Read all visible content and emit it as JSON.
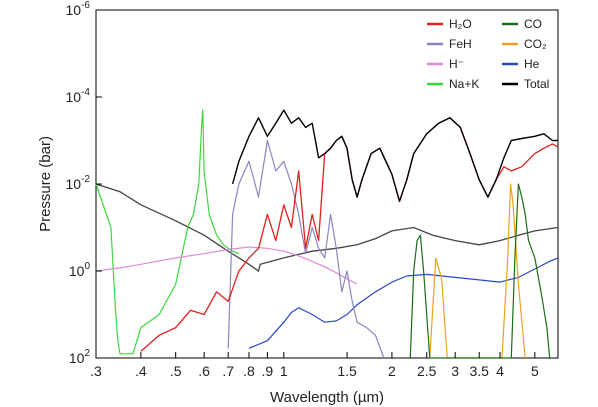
{
  "chart_data": {
    "type": "line",
    "xlabel": "Wavelength (µm)",
    "ylabel": "Pressure (bar)",
    "x_scale": "log",
    "y_scale": "log",
    "y_inverted": true,
    "xlim": [
      0.3,
      5.8
    ],
    "ylim": [
      100,
      1e-06
    ],
    "grid": false,
    "legend_position": "top-right",
    "x_ticks": [
      {
        "value": 0.3,
        "label": ".3"
      },
      {
        "value": 0.4,
        "label": ".4"
      },
      {
        "value": 0.5,
        "label": ".5"
      },
      {
        "value": 0.6,
        "label": ".6"
      },
      {
        "value": 0.7,
        "label": ".7"
      },
      {
        "value": 0.8,
        "label": ".8"
      },
      {
        "value": 0.9,
        "label": ".9"
      },
      {
        "value": 1,
        "label": "1"
      },
      {
        "value": 1.5,
        "label": "1.5"
      },
      {
        "value": 2,
        "label": "2"
      },
      {
        "value": 2.5,
        "label": "2.5"
      },
      {
        "value": 3,
        "label": "3"
      },
      {
        "value": 3.5,
        "label": "3.5"
      },
      {
        "value": 4,
        "label": "4"
      },
      {
        "value": 5,
        "label": "5"
      }
    ],
    "y_ticks": [
      {
        "value": 1e-06,
        "base": "10",
        "exp": "-6"
      },
      {
        "value": 0.0001,
        "base": "10",
        "exp": "-4"
      },
      {
        "value": 0.01,
        "base": "10",
        "exp": "-2"
      },
      {
        "value": 1,
        "base": "10",
        "exp": "0"
      },
      {
        "value": 100,
        "base": "10",
        "exp": "2"
      }
    ],
    "legend": [
      {
        "label": "H₂O",
        "color": "#e0201c"
      },
      {
        "label": "CO",
        "color": "#1a6b1a"
      },
      {
        "label": "FeH",
        "color": "#8a84c2"
      },
      {
        "label": "CO₂",
        "color": "#f0a020"
      },
      {
        "label": "H⁻",
        "color": "#e08ad8"
      },
      {
        "label": "He",
        "color": "#2a48c8"
      },
      {
        "label": "Na+K",
        "color": "#3ad83a"
      },
      {
        "label": "Total",
        "color": "#000000"
      }
    ],
    "series": [
      {
        "name": "Total",
        "color": "#000000",
        "width": 1.4,
        "points": [
          [
            0.72,
            0.01
          ],
          [
            0.75,
            0.003
          ],
          [
            0.8,
            0.0008
          ],
          [
            0.85,
            0.0003
          ],
          [
            0.9,
            0.0008
          ],
          [
            0.95,
            0.0004
          ],
          [
            1.0,
            0.0002
          ],
          [
            1.05,
            0.0004
          ],
          [
            1.1,
            0.0003
          ],
          [
            1.15,
            0.0005
          ],
          [
            1.2,
            0.0004
          ],
          [
            1.25,
            0.0025
          ],
          [
            1.3,
            0.002
          ],
          [
            1.35,
            0.0015
          ],
          [
            1.4,
            0.001
          ],
          [
            1.45,
            0.0008
          ],
          [
            1.5,
            0.0015
          ],
          [
            1.55,
            0.008
          ],
          [
            1.6,
            0.02
          ],
          [
            1.65,
            0.008
          ],
          [
            1.75,
            0.002
          ],
          [
            1.85,
            0.0015
          ],
          [
            2.0,
            0.006
          ],
          [
            2.1,
            0.025
          ],
          [
            2.2,
            0.008
          ],
          [
            2.3,
            0.002
          ],
          [
            2.5,
            0.0007
          ],
          [
            2.7,
            0.0004
          ],
          [
            2.9,
            0.0003
          ],
          [
            3.1,
            0.0005
          ],
          [
            3.3,
            0.002
          ],
          [
            3.5,
            0.008
          ],
          [
            3.7,
            0.02
          ],
          [
            3.9,
            0.008
          ],
          [
            4.1,
            0.0025
          ],
          [
            4.3,
            0.001
          ],
          [
            4.6,
            0.0009
          ],
          [
            5.0,
            0.0008
          ],
          [
            5.3,
            0.0007
          ],
          [
            5.6,
            0.001
          ],
          [
            5.8,
            0.001
          ]
        ]
      },
      {
        "name": "H₂O",
        "color": "#e0201c",
        "width": 1.3,
        "points": [
          [
            0.4,
            70
          ],
          [
            0.45,
            30
          ],
          [
            0.5,
            20
          ],
          [
            0.55,
            8
          ],
          [
            0.6,
            10
          ],
          [
            0.65,
            3
          ],
          [
            0.7,
            5
          ],
          [
            0.75,
            1
          ],
          [
            0.8,
            0.5
          ],
          [
            0.85,
            0.3
          ],
          [
            0.9,
            0.05
          ],
          [
            0.95,
            0.2
          ],
          [
            1.0,
            0.03
          ],
          [
            1.05,
            0.1
          ],
          [
            1.1,
            0.005
          ],
          [
            1.15,
            0.3
          ],
          [
            1.2,
            0.05
          ],
          [
            1.25,
            0.2
          ],
          [
            1.3,
            0.002
          ],
          [
            1.35,
            0.0015
          ],
          [
            1.4,
            0.001
          ],
          [
            1.45,
            0.0008
          ],
          [
            1.5,
            0.0015
          ],
          [
            1.55,
            0.008
          ],
          [
            1.6,
            0.02
          ],
          [
            1.65,
            0.008
          ],
          [
            1.75,
            0.002
          ],
          [
            1.85,
            0.0015
          ],
          [
            2.0,
            0.006
          ],
          [
            2.1,
            0.025
          ],
          [
            2.2,
            0.008
          ],
          [
            2.3,
            0.002
          ],
          [
            2.5,
            0.0007
          ],
          [
            2.7,
            0.0004
          ],
          [
            2.9,
            0.0003
          ],
          [
            3.1,
            0.0005
          ],
          [
            3.3,
            0.002
          ],
          [
            3.5,
            0.008
          ],
          [
            3.7,
            0.02
          ],
          [
            3.9,
            0.008
          ],
          [
            4.1,
            0.004
          ],
          [
            4.3,
            0.005
          ],
          [
            4.6,
            0.004
          ],
          [
            5.0,
            0.002
          ],
          [
            5.3,
            0.0015
          ],
          [
            5.6,
            0.0012
          ],
          [
            5.8,
            0.0014
          ]
        ]
      },
      {
        "name": "FeH",
        "color": "#8a84c2",
        "width": 1.2,
        "points": [
          [
            0.7,
            60
          ],
          [
            0.72,
            0.05
          ],
          [
            0.75,
            0.01
          ],
          [
            0.8,
            0.003
          ],
          [
            0.85,
            0.02
          ],
          [
            0.9,
            0.001
          ],
          [
            0.95,
            0.005
          ],
          [
            1.0,
            0.003
          ],
          [
            1.05,
            0.01
          ],
          [
            1.1,
            0.05
          ],
          [
            1.15,
            0.4
          ],
          [
            1.2,
            0.1
          ],
          [
            1.25,
            0.3
          ],
          [
            1.3,
            0.5
          ],
          [
            1.35,
            0.05
          ],
          [
            1.4,
            0.3
          ],
          [
            1.45,
            3
          ],
          [
            1.5,
            1
          ],
          [
            1.55,
            5
          ],
          [
            1.6,
            15
          ],
          [
            1.7,
            20
          ],
          [
            1.8,
            30
          ],
          [
            1.9,
            100
          ]
        ]
      },
      {
        "name": "H⁻",
        "color": "#e08ad8",
        "width": 1.2,
        "points": [
          [
            0.3,
            1
          ],
          [
            0.35,
            0.85
          ],
          [
            0.4,
            0.7
          ],
          [
            0.5,
            0.5
          ],
          [
            0.6,
            0.4
          ],
          [
            0.7,
            0.32
          ],
          [
            0.8,
            0.28
          ],
          [
            0.9,
            0.3
          ],
          [
            1.0,
            0.35
          ],
          [
            1.1,
            0.45
          ],
          [
            1.2,
            0.6
          ],
          [
            1.3,
            0.8
          ],
          [
            1.4,
            1.1
          ],
          [
            1.5,
            1.5
          ],
          [
            1.6,
            2
          ]
        ]
      },
      {
        "name": "Na+K",
        "color": "#3ad83a",
        "width": 1.2,
        "points": [
          [
            0.3,
            0.01
          ],
          [
            0.33,
            0.1
          ],
          [
            0.34,
            8
          ],
          [
            0.345,
            40
          ],
          [
            0.35,
            80
          ],
          [
            0.38,
            80
          ],
          [
            0.4,
            20
          ],
          [
            0.45,
            10
          ],
          [
            0.5,
            2
          ],
          [
            0.54,
            0.1
          ],
          [
            0.56,
            0.05
          ],
          [
            0.58,
            0.01
          ],
          [
            0.59,
            0.0005
          ],
          [
            0.595,
            0.0002
          ],
          [
            0.6,
            0.005
          ],
          [
            0.62,
            0.05
          ],
          [
            0.65,
            0.15
          ],
          [
            0.68,
            0.25
          ],
          [
            0.7,
            0.3
          ],
          [
            0.72,
            0.35
          ],
          [
            0.75,
            0.4
          ]
        ]
      },
      {
        "name": "CO",
        "color": "#1a6b1a",
        "width": 1.2,
        "points": [
          [
            2.25,
            100
          ],
          [
            2.3,
            1
          ],
          [
            2.35,
            0.2
          ],
          [
            2.4,
            0.15
          ],
          [
            2.45,
            1
          ],
          [
            2.55,
            100
          ],
          [
            4.3,
            100
          ],
          [
            4.4,
            0.5
          ],
          [
            4.5,
            0.01
          ],
          [
            4.6,
            0.02
          ],
          [
            4.7,
            0.05
          ],
          [
            4.8,
            0.2
          ],
          [
            5.0,
            0.5
          ],
          [
            5.2,
            3
          ],
          [
            5.4,
            20
          ],
          [
            5.5,
            100
          ]
        ]
      },
      {
        "name": "CO₂",
        "color": "#f0a020",
        "width": 1.2,
        "points": [
          [
            2.55,
            100
          ],
          [
            2.65,
            0.5
          ],
          [
            2.75,
            1.5
          ],
          [
            2.85,
            100
          ],
          [
            4.05,
            100
          ],
          [
            4.2,
            0.5
          ],
          [
            4.28,
            0.01
          ],
          [
            4.35,
            0.03
          ],
          [
            4.5,
            2
          ],
          [
            4.7,
            100
          ]
        ]
      },
      {
        "name": "He",
        "color": "#2a48c8",
        "width": 1.2,
        "points": [
          [
            0.8,
            60
          ],
          [
            0.9,
            40
          ],
          [
            1.0,
            15
          ],
          [
            1.05,
            9
          ],
          [
            1.1,
            7
          ],
          [
            1.2,
            10
          ],
          [
            1.3,
            15
          ],
          [
            1.4,
            14
          ],
          [
            1.5,
            10
          ],
          [
            1.6,
            6
          ],
          [
            1.8,
            3
          ],
          [
            2.0,
            1.8
          ],
          [
            2.2,
            1.3
          ],
          [
            2.5,
            1.2
          ],
          [
            3.0,
            1.4
          ],
          [
            3.5,
            1.6
          ],
          [
            4.0,
            1.8
          ],
          [
            4.5,
            1.4
          ],
          [
            5.0,
            0.9
          ],
          [
            5.5,
            0.6
          ],
          [
            5.8,
            0.5
          ]
        ]
      }
    ],
    "total_baseline": [
      [
        0.3,
        0.01
      ],
      [
        0.35,
        0.015
      ],
      [
        0.4,
        0.03
      ],
      [
        0.5,
        0.07
      ],
      [
        0.6,
        0.15
      ],
      [
        0.7,
        0.35
      ],
      [
        0.8,
        0.7
      ],
      [
        0.85,
        1.0
      ],
      [
        0.86,
        0.7
      ],
      [
        1.0,
        0.5
      ],
      [
        1.2,
        0.35
      ],
      [
        1.4,
        0.3
      ],
      [
        1.6,
        0.25
      ],
      [
        1.8,
        0.18
      ],
      [
        2.0,
        0.12
      ],
      [
        2.3,
        0.1
      ],
      [
        2.6,
        0.15
      ],
      [
        3.0,
        0.2
      ],
      [
        3.5,
        0.25
      ],
      [
        4.0,
        0.2
      ],
      [
        4.5,
        0.15
      ],
      [
        5.0,
        0.12
      ],
      [
        5.8,
        0.1
      ]
    ]
  }
}
